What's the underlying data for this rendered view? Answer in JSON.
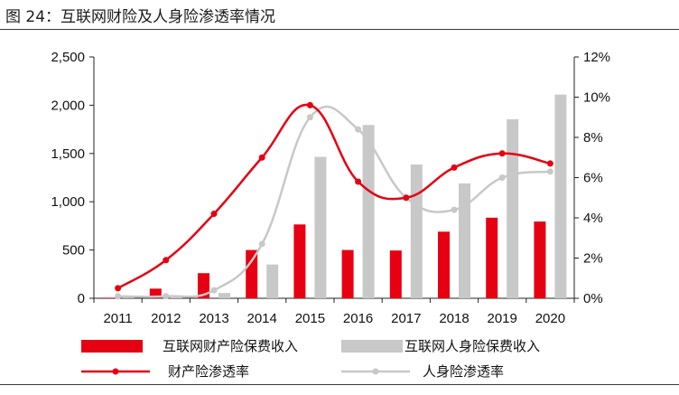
{
  "title": "图 24：互联网财险及人身险渗透率情况",
  "chart_data": {
    "type": "bar",
    "title": "图 24：互联网财险及人身险渗透率情况",
    "categories": [
      "2011",
      "2012",
      "2013",
      "2014",
      "2015",
      "2016",
      "2017",
      "2018",
      "2019",
      "2020"
    ],
    "series": [
      {
        "name": "互联网财产险保费收入",
        "type": "bar",
        "axis": "left",
        "color": "#e60012",
        "values": [
          6,
          100,
          260,
          500,
          765,
          500,
          495,
          690,
          835,
          795
        ]
      },
      {
        "name": "互联网人身险保费收入",
        "type": "bar",
        "axis": "left",
        "color": "#c8c8c8",
        "values": [
          3,
          10,
          55,
          350,
          1465,
          1795,
          1385,
          1190,
          1855,
          2110
        ]
      },
      {
        "name": "财产险渗透率",
        "type": "line",
        "axis": "right",
        "color": "#e60012",
        "values": [
          0.5,
          1.9,
          4.2,
          7.0,
          9.6,
          5.8,
          5.0,
          6.5,
          7.2,
          6.7
        ]
      },
      {
        "name": "人身险渗透率",
        "type": "line",
        "axis": "right",
        "color": "#c8c8c8",
        "values": [
          0.1,
          0.1,
          0.4,
          2.7,
          9.0,
          8.4,
          5.0,
          4.4,
          6.0,
          6.3
        ]
      }
    ],
    "left_axis": {
      "min": 0,
      "max": 2500,
      "ticks": [
        "0",
        "500",
        "1,000",
        "1,500",
        "2,000",
        "2,500"
      ]
    },
    "right_axis": {
      "min": 0,
      "max": 12,
      "ticks": [
        "0%",
        "2%",
        "4%",
        "6%",
        "8%",
        "10%",
        "12%"
      ]
    },
    "xlabel": "",
    "ylabel": "",
    "grid": false,
    "legend_position": "bottom"
  }
}
